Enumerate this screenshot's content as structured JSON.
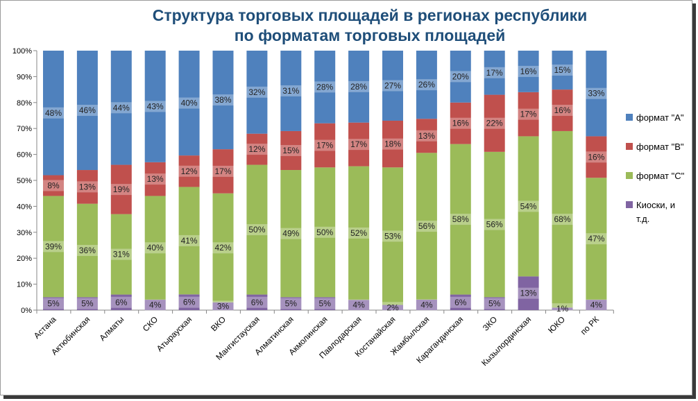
{
  "chart_data": {
    "type": "bar",
    "stacked": true,
    "title_lines": [
      "Структура торговых площадей  в регионах республики",
      "по форматам торговых площадей"
    ],
    "categories": [
      "Астана",
      "Актюбинская",
      "Алматы",
      "СКО",
      "Атырауская",
      "ВКО",
      "Мангистауская",
      "Алматинская",
      "Акмолинская",
      "Павлодарская",
      "Костанайская",
      "Жамбылская",
      "Карагандинская",
      "ЗКО",
      "Кызылординская",
      "ЮКО",
      "по РК"
    ],
    "y_ticks": [
      "0%",
      "10%",
      "20%",
      "30%",
      "40%",
      "50%",
      "60%",
      "70%",
      "80%",
      "90%",
      "100%"
    ],
    "ylim": [
      0,
      100
    ],
    "grid": false,
    "legend_position": "right",
    "series": [
      {
        "name": "Киоски, и т.д.",
        "color": "#8064a2",
        "values": [
          5,
          5,
          6,
          4,
          6,
          3,
          6,
          5,
          5,
          4,
          2,
          4,
          6,
          5,
          13,
          1,
          4
        ],
        "labels": [
          "5%",
          "5%",
          "6%",
          "4%",
          "6%",
          "3%",
          "6%",
          "5%",
          "5%",
          "4%",
          "2%",
          "4%",
          "6%",
          "5%",
          "13%",
          "1%",
          "4%"
        ]
      },
      {
        "name": "формат \"C\"",
        "color": "#9bbb59",
        "values": [
          39,
          36,
          31,
          40,
          41,
          42,
          50,
          49,
          50,
          52,
          53,
          56,
          58,
          56,
          54,
          68,
          47
        ],
        "labels": [
          "39%",
          "36%",
          "31%",
          "40%",
          "41%",
          "42%",
          "50%",
          "49%",
          "50%",
          "52%",
          "53%",
          "56%",
          "58%",
          "56%",
          "54%",
          "68%",
          "47%"
        ]
      },
      {
        "name": "формат \"B\"",
        "color": "#c0504d",
        "values": [
          8,
          13,
          19,
          13,
          12,
          17,
          12,
          15,
          17,
          17,
          18,
          13,
          16,
          22,
          17,
          16,
          16
        ],
        "labels": [
          "8%",
          "13%",
          "19%",
          "13%",
          "12%",
          "17%",
          "12%",
          "15%",
          "17%",
          "17%",
          "18%",
          "13%",
          "16%",
          "22%",
          "17%",
          "16%",
          "16%"
        ]
      },
      {
        "name": "формат \"A\"",
        "color": "#4f81bd",
        "values": [
          48,
          46,
          44,
          43,
          40,
          38,
          32,
          31,
          28,
          28,
          27,
          26,
          20,
          17,
          16,
          15,
          33
        ],
        "labels": [
          "48%",
          "46%",
          "44%",
          "43%",
          "40%",
          "38%",
          "32%",
          "31%",
          "28%",
          "28%",
          "27%",
          "26%",
          "20%",
          "17%",
          "16%",
          "15%",
          "33%"
        ]
      }
    ],
    "legend": [
      {
        "lines": [
          "формат \"A\""
        ],
        "color": "#4f81bd"
      },
      {
        "lines": [
          "формат \"B\""
        ],
        "color": "#c0504d"
      },
      {
        "lines": [
          "формат \"C\""
        ],
        "color": "#9bbb59"
      },
      {
        "lines": [
          "Киоски, и",
          "т.д."
        ],
        "color": "#8064a2"
      }
    ]
  }
}
